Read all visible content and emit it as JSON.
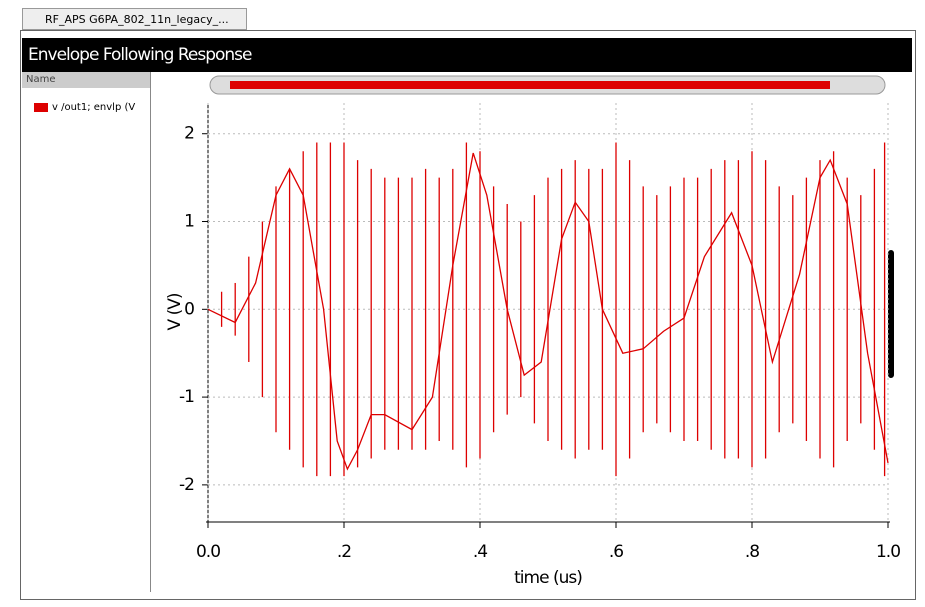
{
  "tab": {
    "title": "RF_APS G6PA_802_11n_legacy_..."
  },
  "panel": {
    "header": "Name"
  },
  "chart_data": {
    "type": "line",
    "title": "Envelope Following Response",
    "x_label": "time (us)",
    "y_label": "V (V)",
    "xlim": [
      0,
      1
    ],
    "ylim": [
      -2.4,
      2.35
    ],
    "xticks": [
      {
        "value": 0,
        "label": "0.0"
      },
      {
        "value": 0.2,
        "label": ".2"
      },
      {
        "value": 0.4,
        "label": ".4"
      },
      {
        "value": 0.6,
        "label": ".6"
      },
      {
        "value": 0.8,
        "label": ".8"
      },
      {
        "value": 1,
        "label": "1.0"
      }
    ],
    "yticks": [
      -2,
      -1,
      0,
      1,
      2
    ],
    "grid": true,
    "series": [
      {
        "name": "v /out1; envlp (V",
        "color": "#dd0000",
        "x": [
          0,
          0.04,
          0.07,
          0.1,
          0.12,
          0.14,
          0.17,
          0.19,
          0.205,
          0.22,
          0.24,
          0.26,
          0.3,
          0.33,
          0.36,
          0.39,
          0.41,
          0.44,
          0.465,
          0.49,
          0.52,
          0.54,
          0.56,
          0.58,
          0.61,
          0.64,
          0.67,
          0.7,
          0.73,
          0.77,
          0.8,
          0.83,
          0.87,
          0.9,
          0.915,
          0.94,
          0.97,
          1.0
        ],
        "values": [
          0,
          -0.15,
          0.3,
          1.3,
          1.6,
          1.3,
          0,
          -1.5,
          -1.82,
          -1.6,
          -1.2,
          -1.2,
          -1.37,
          -1.0,
          0.5,
          1.78,
          1.3,
          0,
          -0.75,
          -0.6,
          0.8,
          1.22,
          1.0,
          0,
          -0.5,
          -0.45,
          -0.25,
          -0.1,
          0.6,
          1.1,
          0.5,
          -0.6,
          0.4,
          1.5,
          1.7,
          1.2,
          -0.5,
          -1.75
        ],
        "spike_x": [
          0.02,
          0.04,
          0.06,
          0.08,
          0.1,
          0.12,
          0.14,
          0.16,
          0.18,
          0.2,
          0.22,
          0.24,
          0.26,
          0.28,
          0.3,
          0.32,
          0.34,
          0.36,
          0.38,
          0.4,
          0.42,
          0.44,
          0.46,
          0.48,
          0.5,
          0.52,
          0.54,
          0.56,
          0.58,
          0.6,
          0.62,
          0.64,
          0.66,
          0.68,
          0.7,
          0.72,
          0.74,
          0.76,
          0.78,
          0.8,
          0.82,
          0.84,
          0.86,
          0.88,
          0.9,
          0.92,
          0.94,
          0.96,
          0.98,
          0.995
        ],
        "spike_high": [
          0.2,
          0.3,
          0.6,
          1.0,
          1.4,
          1.6,
          1.8,
          1.9,
          1.9,
          1.9,
          1.7,
          1.6,
          1.5,
          1.5,
          1.5,
          1.6,
          1.5,
          1.6,
          1.9,
          1.8,
          1.4,
          1.2,
          1.0,
          1.3,
          1.5,
          1.6,
          1.7,
          1.6,
          1.6,
          1.9,
          1.7,
          1.4,
          1.3,
          1.4,
          1.5,
          1.5,
          1.6,
          1.7,
          1.7,
          1.8,
          1.7,
          1.4,
          1.3,
          1.5,
          1.7,
          1.8,
          1.5,
          1.3,
          1.6,
          1.9
        ],
        "spike_low": [
          -0.2,
          -0.3,
          -0.6,
          -1.0,
          -1.4,
          -1.6,
          -1.8,
          -1.9,
          -1.9,
          -1.9,
          -1.8,
          -1.7,
          -1.6,
          -1.6,
          -1.6,
          -1.6,
          -1.5,
          -1.6,
          -1.8,
          -1.7,
          -1.4,
          -1.2,
          -1.0,
          -1.3,
          -1.5,
          -1.6,
          -1.7,
          -1.6,
          -1.6,
          -1.9,
          -1.7,
          -1.4,
          -1.3,
          -1.4,
          -1.5,
          -1.5,
          -1.6,
          -1.7,
          -1.7,
          -1.8,
          -1.7,
          -1.4,
          -1.3,
          -1.5,
          -1.7,
          -1.8,
          -1.5,
          -1.3,
          -1.6,
          -1.9
        ]
      }
    ]
  }
}
